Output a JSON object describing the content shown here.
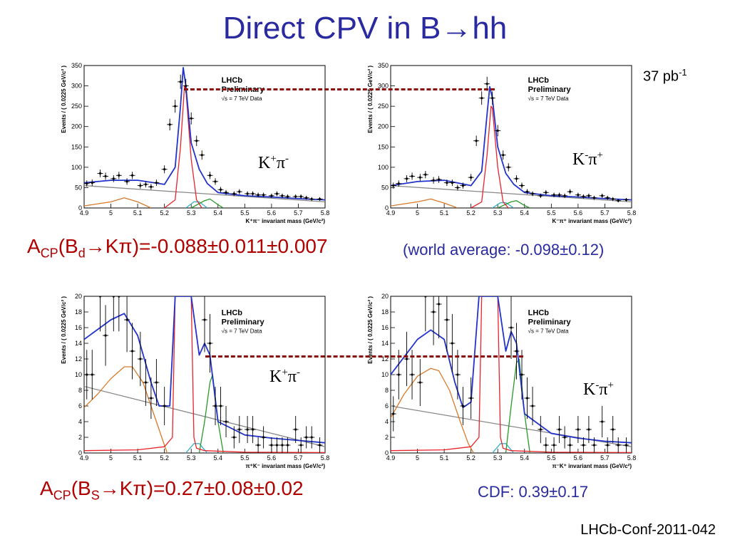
{
  "title": "Direct CPV in B→hh",
  "luminosity": {
    "value": "37 pb",
    "exp": "-1"
  },
  "lhcb_label": {
    "line1": "LHCb",
    "line2": "Preliminary",
    "line3": "√s = 7 TeV Data"
  },
  "result_bd": {
    "A": "A",
    "A_sub": "CP",
    "rest1": "(B",
    "rest_sub": "d",
    "rest2": "→Kπ)=-0.088±0.011±0.007"
  },
  "world_avg": "(world average: -0.098±0.12)",
  "result_bs": {
    "A": "A",
    "A_sub": "CP",
    "rest1": "(B",
    "rest_sub": "S",
    "rest2": "→Kπ)=0.27±0.08±0.02"
  },
  "cdf": "CDF: 0.39±0.17",
  "reference": "LHCb-Conf-2011-042",
  "channels": {
    "kp_pim": {
      "main": "K",
      "sup1": "+",
      "pi": "π",
      "sup2": "-"
    },
    "km_pip": {
      "main": "K",
      "sup1": "-",
      "pi": "π",
      "sup2": "+"
    }
  },
  "colors": {
    "signal": "#e8242a",
    "total": "#2233cc",
    "comb": "#888888",
    "partial": "#d87a2a",
    "bs": "#2a9a2a",
    "other": "#36b0c8",
    "dashed": "#8a1010",
    "title": "#2a2aa0",
    "result": "#b00000"
  },
  "chart_data": [
    {
      "type": "scatter",
      "panel": "top-left",
      "xlabel": "K⁺π⁻ invariant mass (GeV/c²)",
      "ylabel": "Events / ( 0.0225 GeV/c² )",
      "xlim": [
        4.9,
        5.8
      ],
      "ylim": [
        0,
        350
      ],
      "xticks": [
        "4.9",
        "5",
        "5.1",
        "5.2",
        "5.3",
        "5.4",
        "5.5",
        "5.6",
        "5.7",
        "5.8"
      ],
      "yticks": [
        "0",
        "50",
        "100",
        "150",
        "200",
        "250",
        "300",
        "350"
      ],
      "x": [
        4.91,
        4.93,
        4.96,
        4.98,
        5.01,
        5.03,
        5.06,
        5.08,
        5.11,
        5.13,
        5.15,
        5.17,
        5.2,
        5.22,
        5.24,
        5.26,
        5.28,
        5.3,
        5.32,
        5.34,
        5.37,
        5.39,
        5.41,
        5.43,
        5.46,
        5.48,
        5.51,
        5.53,
        5.55,
        5.57,
        5.6,
        5.62,
        5.64,
        5.66,
        5.69,
        5.71,
        5.73,
        5.75,
        5.78
      ],
      "y": [
        60,
        62,
        85,
        78,
        72,
        80,
        65,
        80,
        55,
        58,
        52,
        62,
        95,
        205,
        250,
        310,
        300,
        220,
        165,
        130,
        80,
        65,
        45,
        38,
        35,
        40,
        35,
        35,
        32,
        32,
        30,
        35,
        30,
        28,
        28,
        28,
        25,
        22,
        22
      ],
      "series": [
        {
          "name": "total",
          "x": [
            4.9,
            5.0,
            5.1,
            5.2,
            5.24,
            5.26,
            5.27,
            5.28,
            5.3,
            5.33,
            5.36,
            5.4,
            5.5,
            5.6,
            5.7,
            5.8
          ],
          "y": [
            62,
            68,
            68,
            58,
            100,
            250,
            345,
            300,
            160,
            95,
            60,
            38,
            30,
            27,
            23,
            20
          ]
        },
        {
          "name": "signal",
          "x": [
            5.2,
            5.24,
            5.26,
            5.275,
            5.28,
            5.3,
            5.32,
            5.34
          ],
          "y": [
            0,
            20,
            150,
            300,
            290,
            120,
            20,
            0
          ]
        },
        {
          "name": "combinatorial",
          "x": [
            4.9,
            5.8
          ],
          "y": [
            55,
            15
          ]
        },
        {
          "name": "partially reconstructed",
          "x": [
            4.9,
            5.0,
            5.05,
            5.1,
            5.15
          ],
          "y": [
            5,
            15,
            25,
            15,
            0
          ]
        },
        {
          "name": "Bs",
          "x": [
            5.3,
            5.35,
            5.37,
            5.4,
            5.42
          ],
          "y": [
            0,
            18,
            22,
            8,
            0
          ]
        },
        {
          "name": "other",
          "x": [
            5.28,
            5.31,
            5.33,
            5.36
          ],
          "y": [
            0,
            15,
            15,
            0
          ]
        }
      ]
    },
    {
      "type": "scatter",
      "panel": "top-right",
      "xlabel": "K⁻π⁺ invariant mass (GeV/c²)",
      "ylabel": "Events / ( 0.0225 GeV/c² )",
      "xlim": [
        4.9,
        5.8
      ],
      "ylim": [
        0,
        350
      ],
      "xticks": [
        "4.9",
        "5",
        "5.1",
        "5.2",
        "5.3",
        "5.4",
        "5.5",
        "5.6",
        "5.7",
        "5.8"
      ],
      "yticks": [
        "0",
        "50",
        "100",
        "150",
        "200",
        "250",
        "300",
        "350"
      ],
      "x": [
        4.91,
        4.93,
        4.96,
        4.98,
        5.01,
        5.03,
        5.06,
        5.08,
        5.11,
        5.13,
        5.15,
        5.17,
        5.2,
        5.22,
        5.24,
        5.26,
        5.28,
        5.3,
        5.32,
        5.34,
        5.37,
        5.39,
        5.41,
        5.43,
        5.46,
        5.48,
        5.51,
        5.53,
        5.55,
        5.57,
        5.6,
        5.62,
        5.64,
        5.66,
        5.69,
        5.71,
        5.73,
        5.75,
        5.78
      ],
      "y": [
        55,
        60,
        72,
        78,
        75,
        82,
        68,
        70,
        62,
        62,
        50,
        55,
        75,
        165,
        270,
        305,
        270,
        190,
        130,
        100,
        72,
        55,
        40,
        35,
        30,
        38,
        32,
        32,
        30,
        40,
        32,
        28,
        30,
        25,
        30,
        25,
        22,
        18,
        20
      ],
      "series": [
        {
          "name": "total",
          "x": [
            4.9,
            5.0,
            5.1,
            5.2,
            5.24,
            5.26,
            5.27,
            5.28,
            5.3,
            5.33,
            5.36,
            5.4,
            5.5,
            5.6,
            5.7,
            5.8
          ],
          "y": [
            55,
            65,
            68,
            55,
            90,
            230,
            298,
            270,
            150,
            85,
            58,
            38,
            30,
            27,
            23,
            20
          ]
        },
        {
          "name": "signal",
          "x": [
            5.2,
            5.24,
            5.26,
            5.275,
            5.28,
            5.3,
            5.32,
            5.34
          ],
          "y": [
            0,
            15,
            130,
            250,
            245,
            100,
            15,
            0
          ]
        },
        {
          "name": "combinatorial",
          "x": [
            4.9,
            5.8
          ],
          "y": [
            55,
            15
          ]
        },
        {
          "name": "partially reconstructed",
          "x": [
            4.9,
            5.0,
            5.05,
            5.1,
            5.15
          ],
          "y": [
            5,
            15,
            22,
            12,
            0
          ]
        },
        {
          "name": "Bs",
          "x": [
            5.3,
            5.35,
            5.37,
            5.4,
            5.42
          ],
          "y": [
            0,
            15,
            18,
            6,
            0
          ]
        },
        {
          "name": "other",
          "x": [
            5.28,
            5.31,
            5.33,
            5.36
          ],
          "y": [
            0,
            13,
            13,
            0
          ]
        }
      ]
    },
    {
      "type": "scatter",
      "panel": "bottom-left",
      "xlabel": "π⁺K⁻ invariant mass (GeV/c²)",
      "ylabel": "Events / ( 0.0225 GeV/c² )",
      "xlim": [
        4.9,
        5.8
      ],
      "ylim": [
        0,
        20
      ],
      "xticks": [
        "4.9",
        "5",
        "5.1",
        "5.2",
        "5.3",
        "5.4",
        "5.5",
        "5.6",
        "5.7",
        "5.8"
      ],
      "yticks": [
        "0",
        "2",
        "4",
        "6",
        "8",
        "10",
        "12",
        "14",
        "16",
        "18",
        "20"
      ],
      "x": [
        4.91,
        4.93,
        4.96,
        4.98,
        5.01,
        5.03,
        5.06,
        5.08,
        5.11,
        5.13,
        5.15,
        5.17,
        5.2,
        5.35,
        5.37,
        5.39,
        5.41,
        5.43,
        5.46,
        5.48,
        5.51,
        5.53,
        5.55,
        5.57,
        5.6,
        5.62,
        5.64,
        5.66,
        5.69,
        5.71,
        5.73,
        5.75,
        5.78
      ],
      "y": [
        10,
        10,
        20,
        15,
        20,
        20,
        17,
        13,
        12,
        9,
        7,
        9,
        6,
        17,
        14,
        6,
        6,
        4,
        2,
        3,
        3,
        3,
        1,
        2,
        1,
        1,
        1,
        1,
        3,
        1,
        2,
        2,
        1
      ],
      "series": [
        {
          "name": "total",
          "x": [
            4.9,
            5.0,
            5.05,
            5.1,
            5.15,
            5.18,
            5.22,
            5.24,
            5.26,
            5.3,
            5.33,
            5.35,
            5.37,
            5.4,
            5.5,
            5.6,
            5.7,
            5.8
          ],
          "y": [
            14.5,
            17,
            17.8,
            15,
            9,
            6,
            6,
            20,
            20,
            20,
            12.5,
            14,
            12.5,
            4,
            2.3,
            1.9,
            1.6,
            1.3
          ]
        },
        {
          "name": "signal",
          "x": [
            4.9,
            5.1,
            5.2,
            5.23,
            5.24,
            5.3,
            5.31,
            5.32,
            5.35,
            5.5,
            5.8
          ],
          "y": [
            0.3,
            0.4,
            0.8,
            2,
            20,
            20,
            2,
            0.6,
            0.3,
            0.1,
            0.05
          ]
        },
        {
          "name": "combinatorial",
          "x": [
            4.9,
            5.8
          ],
          "y": [
            8.5,
            0.8
          ]
        },
        {
          "name": "partially reconstructed",
          "x": [
            4.9,
            4.95,
            5.0,
            5.05,
            5.08,
            5.12,
            5.16,
            5.19,
            5.21
          ],
          "y": [
            5.8,
            7.5,
            9.5,
            11,
            11,
            9,
            5,
            2,
            0
          ]
        },
        {
          "name": "Bs",
          "x": [
            5.33,
            5.35,
            5.37,
            5.38,
            5.4,
            5.42
          ],
          "y": [
            0,
            4,
            9,
            10,
            4,
            0
          ]
        },
        {
          "name": "other",
          "x": [
            5.28,
            5.31,
            5.33,
            5.36
          ],
          "y": [
            0,
            1.2,
            1.2,
            0
          ]
        }
      ]
    },
    {
      "type": "scatter",
      "panel": "bottom-right",
      "xlabel": "π⁻K⁺ invariant mass (GeV/c²)",
      "ylabel": "Events / ( 0.0225 GeV/c² )",
      "xlim": [
        4.9,
        5.8
      ],
      "ylim": [
        0,
        20
      ],
      "xticks": [
        "4.9",
        "5",
        "5.1",
        "5.2",
        "5.3",
        "5.4",
        "5.5",
        "5.6",
        "5.7",
        "5.8"
      ],
      "yticks": [
        "0",
        "2",
        "4",
        "6",
        "8",
        "10",
        "12",
        "14",
        "16",
        "18",
        "20"
      ],
      "x": [
        4.91,
        4.93,
        4.96,
        4.98,
        5.01,
        5.03,
        5.06,
        5.08,
        5.11,
        5.13,
        5.15,
        5.17,
        5.2,
        5.35,
        5.37,
        5.39,
        5.41,
        5.43,
        5.46,
        5.48,
        5.51,
        5.53,
        5.55,
        5.57,
        5.6,
        5.62,
        5.64,
        5.66,
        5.69,
        5.71,
        5.73,
        5.75,
        5.78
      ],
      "y": [
        5,
        10,
        12,
        10,
        9,
        20,
        18,
        19,
        17,
        14,
        10,
        6,
        7,
        16,
        13,
        10,
        7,
        6,
        3,
        1,
        1,
        3,
        2,
        1,
        3,
        1,
        3,
        1,
        4,
        1,
        3,
        1,
        1
      ],
      "series": [
        {
          "name": "total",
          "x": [
            4.9,
            5.0,
            5.05,
            5.1,
            5.14,
            5.17,
            5.2,
            5.23,
            5.25,
            5.3,
            5.33,
            5.35,
            5.37,
            5.4,
            5.5,
            5.6,
            5.7,
            5.8
          ],
          "y": [
            10,
            14.5,
            15.7,
            14.5,
            9,
            5.8,
            6.5,
            20,
            20,
            20,
            13,
            15.5,
            14,
            5,
            2.5,
            1.9,
            1.5,
            1.3
          ]
        },
        {
          "name": "signal",
          "x": [
            4.9,
            5.1,
            5.2,
            5.23,
            5.24,
            5.3,
            5.31,
            5.32,
            5.35,
            5.5,
            5.8
          ],
          "y": [
            0.3,
            0.4,
            0.8,
            2,
            20,
            20,
            2,
            0.6,
            0.3,
            0.1,
            0.05
          ]
        },
        {
          "name": "combinatorial",
          "x": [
            4.9,
            5.8
          ],
          "y": [
            6,
            0.8
          ]
        },
        {
          "name": "partially reconstructed",
          "x": [
            4.9,
            4.95,
            5.0,
            5.05,
            5.08,
            5.12,
            5.16,
            5.19,
            5.21
          ],
          "y": [
            4.5,
            7.5,
            9.8,
            10.8,
            10.5,
            8,
            4,
            1.2,
            0
          ]
        },
        {
          "name": "Bs",
          "x": [
            5.33,
            5.35,
            5.37,
            5.38,
            5.4,
            5.42
          ],
          "y": [
            0,
            6,
            11.5,
            12,
            5,
            0
          ]
        },
        {
          "name": "other",
          "x": [
            5.28,
            5.31,
            5.33,
            5.36
          ],
          "y": [
            0,
            1.2,
            1.2,
            0
          ]
        }
      ]
    }
  ]
}
